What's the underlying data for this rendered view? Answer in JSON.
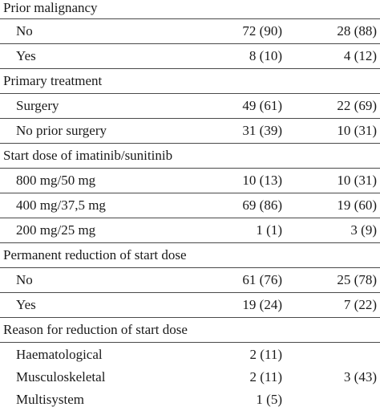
{
  "sections": [
    {
      "title": "Prior malignancy",
      "rows": [
        {
          "label": "No",
          "col1": "72 (90)",
          "col2": "28 (88)"
        },
        {
          "label": "Yes",
          "col1": "8 (10)",
          "col2": "4 (12)"
        }
      ]
    },
    {
      "title": "Primary treatment",
      "rows": [
        {
          "label": "Surgery",
          "col1": "49 (61)",
          "col2": "22 (69)"
        },
        {
          "label": "No prior surgery",
          "col1": "31 (39)",
          "col2": "10 (31)"
        }
      ]
    },
    {
      "title": "Start dose of imatinib/sunitinib",
      "rows": [
        {
          "label": "800 mg/50 mg",
          "col1": "10 (13)",
          "col2": "10 (31)"
        },
        {
          "label": "400 mg/37,5 mg",
          "col1": "69 (86)",
          "col2": "19 (60)"
        },
        {
          "label": "200 mg/25 mg",
          "col1": "1 (1)",
          "col2": "3 (9)"
        }
      ]
    },
    {
      "title": "Permanent reduction of start dose",
      "rows": [
        {
          "label": "No",
          "col1": "61 (76)",
          "col2": "25 (78)"
        },
        {
          "label": "Yes",
          "col1": "19 (24)",
          "col2": "7 (22)"
        }
      ]
    },
    {
      "title": "Reason for reduction of start dose",
      "rows": [
        {
          "label": "Haematological",
          "col1": "2 (11)",
          "col2": ""
        },
        {
          "label": "Musculoskeletal",
          "col1": "2 (11)",
          "col2": "3 (43)"
        },
        {
          "label": "Multisystem",
          "col1": "1 (5)",
          "col2": ""
        }
      ]
    }
  ]
}
